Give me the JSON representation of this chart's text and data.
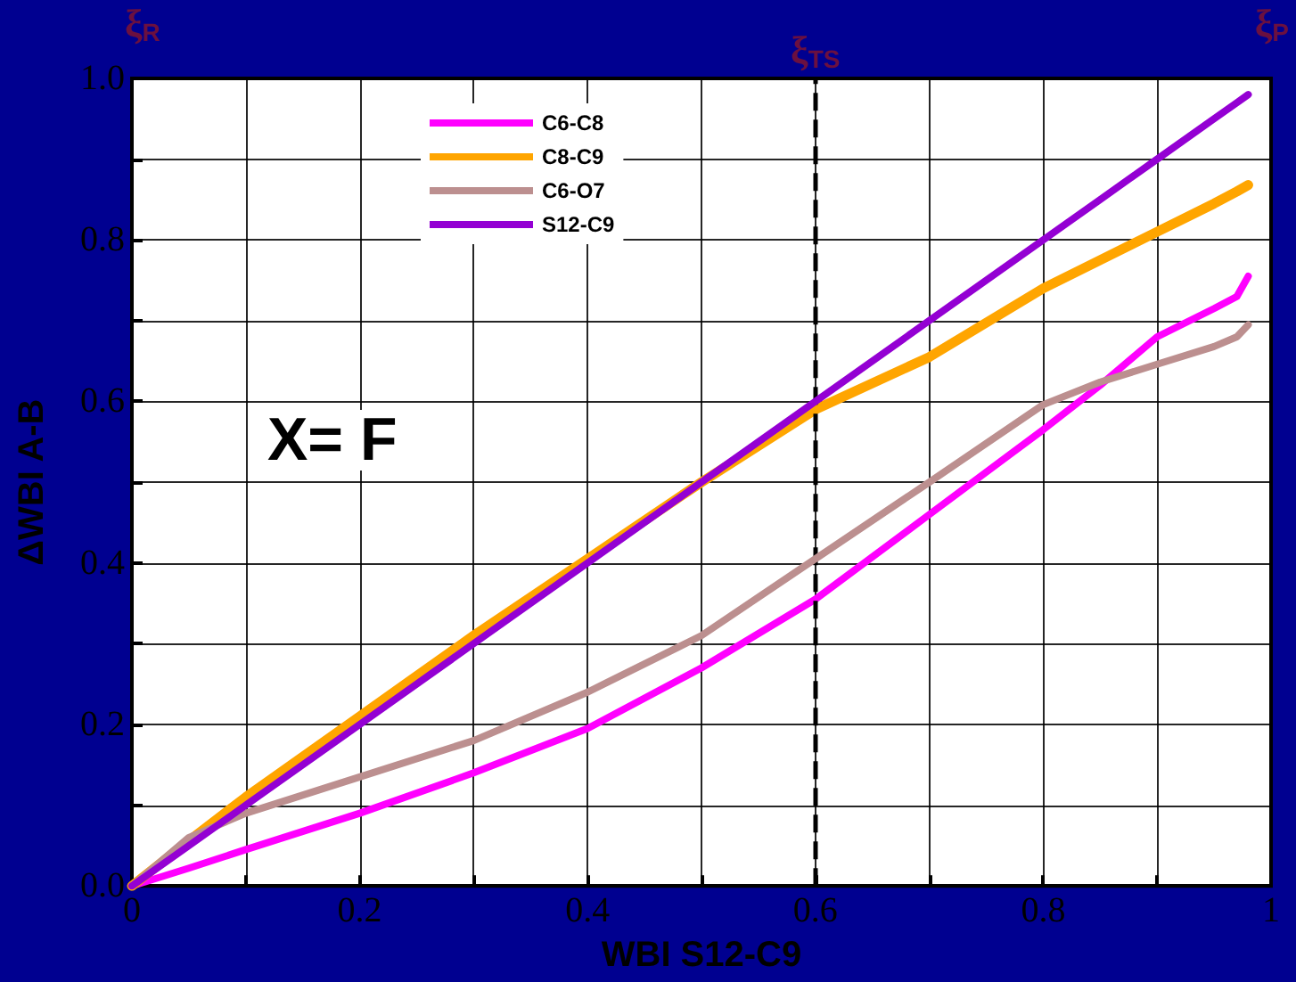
{
  "chart_data": {
    "type": "line",
    "xlabel": "WBI S12-C9",
    "ylabel": "ΔWBI A-B",
    "xlim": [
      0,
      1
    ],
    "ylim": [
      0,
      1
    ],
    "xticks": [
      0,
      {
        "value": 0.1,
        "label": null
      },
      0.2,
      {
        "value": 0.3,
        "label": null
      },
      0.4,
      {
        "value": 0.5,
        "label": null
      },
      0.6,
      {
        "value": 0.7,
        "label": null
      },
      0.8,
      {
        "value": 0.9,
        "label": null
      },
      1
    ],
    "yticks": [
      {
        "value": 0,
        "label": "0.0"
      },
      {
        "value": 0.1,
        "label": null
      },
      0.2,
      {
        "value": 0.3,
        "label": null
      },
      0.4,
      {
        "value": 0.5,
        "label": null
      },
      0.6,
      {
        "value": 0.7,
        "label": null
      },
      0.8,
      {
        "value": 0.9,
        "label": null
      },
      {
        "value": 1,
        "label": "1.0"
      }
    ],
    "grid": true,
    "legend": "top",
    "marker": "none",
    "line_style": "solid",
    "x": [
      0,
      0.05,
      0.1,
      0.2,
      0.3,
      0.4,
      0.5,
      0.6,
      0.7,
      0.8,
      0.85,
      0.9,
      0.95,
      0.97,
      0.98
    ],
    "series": [
      {
        "name": "C6-C8",
        "color": "#ff00ff",
        "values": [
          0,
          0.022,
          0.045,
          0.09,
          0.14,
          0.195,
          0.27,
          0.355,
          0.46,
          0.565,
          0.62,
          0.68,
          0.715,
          0.73,
          0.755
        ]
      },
      {
        "name": "C8-C9",
        "color": "#ffa500",
        "values": [
          0,
          0.056,
          0.11,
          0.21,
          0.31,
          0.405,
          0.5,
          0.59,
          0.655,
          0.74,
          0.775,
          0.81,
          0.845,
          0.86,
          0.868
        ]
      },
      {
        "name": "C6-O7",
        "color": "#bc8f8f",
        "values": [
          0,
          0.06,
          0.09,
          0.135,
          0.18,
          0.24,
          0.31,
          0.405,
          0.5,
          0.596,
          0.624,
          0.646,
          0.668,
          0.68,
          0.695
        ]
      },
      {
        "name": "S12-C9",
        "color": "#9400d3",
        "values": [
          0,
          0.05,
          0.1,
          0.2,
          0.3,
          0.4,
          0.5,
          0.6,
          0.7,
          0.8,
          0.85,
          0.9,
          0.95,
          0.97,
          0.98
        ]
      }
    ],
    "ref_lines": [
      {
        "axis": "x",
        "value": 0.6,
        "label": "ξ$_{TS}$",
        "color": "#000000",
        "line_style": "dashed"
      }
    ],
    "annotations": [
      "ξ$_{R}$",
      "ξ$_{P}$",
      "X= F"
    ]
  }
}
